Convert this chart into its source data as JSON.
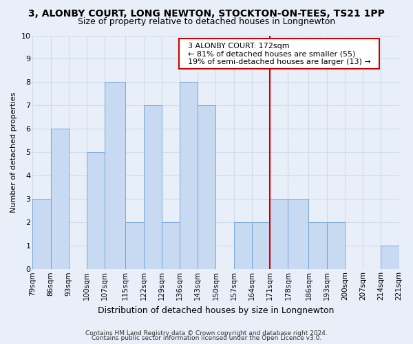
{
  "title": "3, ALONBY COURT, LONG NEWTON, STOCKTON-ON-TEES, TS21 1PP",
  "subtitle": "Size of property relative to detached houses in Longnewton",
  "xlabel": "Distribution of detached houses by size in Longnewton",
  "ylabel": "Number of detached properties",
  "bin_labels": [
    "79sqm",
    "86sqm",
    "93sqm",
    "100sqm",
    "107sqm",
    "115sqm",
    "122sqm",
    "129sqm",
    "136sqm",
    "143sqm",
    "150sqm",
    "157sqm",
    "164sqm",
    "171sqm",
    "178sqm",
    "186sqm",
    "193sqm",
    "200sqm",
    "207sqm",
    "214sqm",
    "221sqm"
  ],
  "bar_heights": [
    3,
    6,
    0,
    5,
    8,
    2,
    7,
    2,
    8,
    7,
    0,
    2,
    2,
    3,
    3,
    2,
    2,
    0,
    0,
    1
  ],
  "bin_edges": [
    79,
    86,
    93,
    100,
    107,
    115,
    122,
    129,
    136,
    143,
    150,
    157,
    164,
    171,
    178,
    186,
    193,
    200,
    207,
    214,
    221
  ],
  "property_line_x": 171,
  "annotation_title": "3 ALONBY COURT: 172sqm",
  "annotation_line1": "← 81% of detached houses are smaller (55)",
  "annotation_line2": "19% of semi-detached houses are larger (13) →",
  "annotation_box_facecolor": "#ffffff",
  "annotation_box_edgecolor": "#cc0000",
  "bar_color": "#c8daf2",
  "bar_edgecolor": "#6a9fd8",
  "grid_color": "#d0dce8",
  "bg_color": "#e8eff8",
  "ylim": [
    0,
    10
  ],
  "footer_line1": "Contains HM Land Registry data © Crown copyright and database right 2024.",
  "footer_line2": "Contains public sector information licensed under the Open Licence v3.0.",
  "title_fontsize": 10,
  "subtitle_fontsize": 9,
  "ylabel_fontsize": 8,
  "xlabel_fontsize": 9,
  "tick_fontsize": 7.5,
  "ytick_fontsize": 8,
  "footer_fontsize": 6.5,
  "annot_fontsize": 8
}
